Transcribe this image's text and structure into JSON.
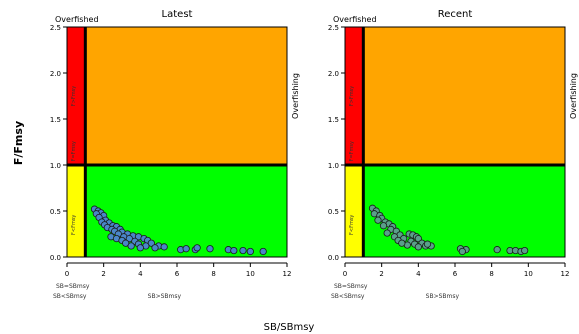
{
  "y_axis_label": "F/Fmsy",
  "x_axis_label": "SB/SBmsy",
  "chart_data": [
    {
      "type": "scatter",
      "title": "Latest",
      "xlim": [
        0,
        12
      ],
      "ylim": [
        0,
        2.5
      ],
      "x_ticks": [
        0,
        2,
        4,
        6,
        8,
        10,
        12
      ],
      "y_ticks": [
        0.0,
        0.5,
        1.0,
        1.5,
        2.0,
        2.5
      ],
      "reference_lines": {
        "x": 1,
        "y": 1
      },
      "point_color": "#4a86c8",
      "zone_colors": {
        "overfished_overfishing": "#ff0000",
        "overfishing": "#ffa500",
        "overfished": "#ffff00",
        "healthy": "#00ff00"
      },
      "annotations": {
        "overfished": "Overfished",
        "overfishing": "Overfishing",
        "f_gt_fmsy": "F>Fmsy",
        "f_eq_fmsy": "F=Fmsy",
        "f_lt_fmsy": "F<Fmsy",
        "sb_eq_sbmsy": "SB=SBmsy",
        "sb_lt_sbmsy": "SB<SBmsy",
        "sb_gt_sbmsy": "SB>SBmsy"
      },
      "points": [
        [
          1.5,
          0.52
        ],
        [
          1.7,
          0.5
        ],
        [
          1.85,
          0.48
        ],
        [
          1.6,
          0.47
        ],
        [
          2.0,
          0.45
        ],
        [
          1.75,
          0.43
        ],
        [
          2.1,
          0.4
        ],
        [
          1.9,
          0.38
        ],
        [
          2.3,
          0.37
        ],
        [
          2.05,
          0.35
        ],
        [
          2.5,
          0.34
        ],
        [
          2.2,
          0.32
        ],
        [
          2.7,
          0.33
        ],
        [
          2.45,
          0.3
        ],
        [
          2.9,
          0.3
        ],
        [
          2.6,
          0.28
        ],
        [
          3.0,
          0.27
        ],
        [
          2.8,
          0.25
        ],
        [
          3.3,
          0.25
        ],
        [
          2.4,
          0.22
        ],
        [
          3.1,
          0.22
        ],
        [
          3.6,
          0.23
        ],
        [
          2.7,
          0.2
        ],
        [
          3.4,
          0.2
        ],
        [
          3.9,
          0.22
        ],
        [
          4.2,
          0.2
        ],
        [
          3.0,
          0.18
        ],
        [
          3.7,
          0.17
        ],
        [
          4.4,
          0.18
        ],
        [
          3.2,
          0.15
        ],
        [
          3.9,
          0.14
        ],
        [
          4.6,
          0.15
        ],
        [
          3.5,
          0.12
        ],
        [
          4.3,
          0.12
        ],
        [
          5.0,
          0.12
        ],
        [
          4.0,
          0.1
        ],
        [
          4.8,
          0.1
        ],
        [
          5.3,
          0.11
        ],
        [
          6.2,
          0.08
        ],
        [
          6.5,
          0.09
        ],
        [
          7.0,
          0.08
        ],
        [
          7.1,
          0.1
        ],
        [
          7.8,
          0.09
        ],
        [
          8.8,
          0.08
        ],
        [
          9.1,
          0.07
        ],
        [
          9.6,
          0.07
        ],
        [
          10.0,
          0.06
        ],
        [
          10.7,
          0.06
        ]
      ]
    },
    {
      "type": "scatter",
      "title": "Recent",
      "xlim": [
        0,
        12
      ],
      "ylim": [
        0,
        2.5
      ],
      "x_ticks": [
        0,
        2,
        4,
        6,
        8,
        10,
        12
      ],
      "y_ticks": [
        0.0,
        0.5,
        1.0,
        1.5,
        2.0,
        2.5
      ],
      "reference_lines": {
        "x": 1,
        "y": 1
      },
      "point_color": "#5aa08a",
      "zone_colors": {
        "overfished_overfishing": "#ff0000",
        "overfishing": "#ffa500",
        "overfished": "#ffff00",
        "healthy": "#00ff00"
      },
      "annotations": {
        "overfished": "Overfished",
        "overfishing": "Overfishing",
        "f_gt_fmsy": "F>Fmsy",
        "f_eq_fmsy": "F=Fmsy",
        "f_lt_fmsy": "F<Fmsy",
        "sb_eq_sbmsy": "SB=SBmsy",
        "sb_lt_sbmsy": "SB<SBmsy",
        "sb_gt_sbmsy": "SB>SBmsy"
      },
      "points": [
        [
          1.5,
          0.53
        ],
        [
          1.7,
          0.5
        ],
        [
          1.6,
          0.47
        ],
        [
          1.9,
          0.45
        ],
        [
          2.0,
          0.42
        ],
        [
          1.8,
          0.4
        ],
        [
          2.2,
          0.38
        ],
        [
          2.4,
          0.36
        ],
        [
          2.1,
          0.34
        ],
        [
          2.6,
          0.33
        ],
        [
          2.5,
          0.3
        ],
        [
          2.8,
          0.28
        ],
        [
          2.3,
          0.26
        ],
        [
          3.0,
          0.24
        ],
        [
          2.7,
          0.22
        ],
        [
          3.2,
          0.2
        ],
        [
          2.9,
          0.18
        ],
        [
          3.5,
          0.25
        ],
        [
          3.7,
          0.24
        ],
        [
          3.9,
          0.22
        ],
        [
          4.0,
          0.2
        ],
        [
          3.6,
          0.17
        ],
        [
          4.2,
          0.15
        ],
        [
          3.8,
          0.14
        ],
        [
          4.4,
          0.12
        ],
        [
          4.0,
          0.11
        ],
        [
          4.7,
          0.12
        ],
        [
          3.4,
          0.13
        ],
        [
          3.1,
          0.15
        ],
        [
          6.3,
          0.09
        ],
        [
          6.6,
          0.08
        ],
        [
          6.4,
          0.06
        ],
        [
          8.3,
          0.08
        ],
        [
          9.0,
          0.07
        ],
        [
          9.3,
          0.07
        ],
        [
          9.6,
          0.06
        ],
        [
          9.8,
          0.07
        ],
        [
          4.5,
          0.14
        ]
      ]
    }
  ]
}
